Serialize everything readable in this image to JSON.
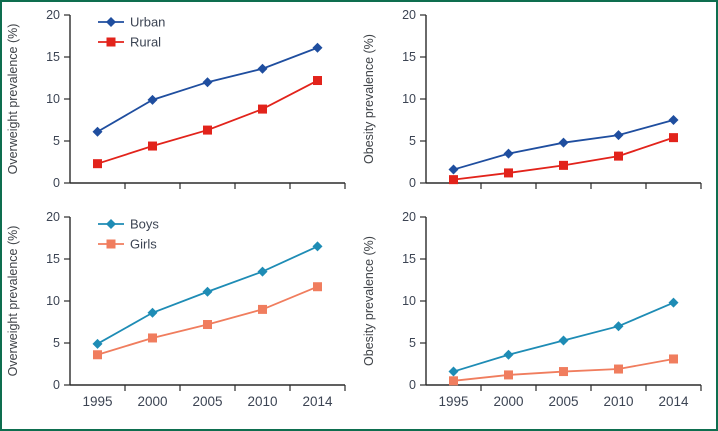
{
  "figure": {
    "border_color": "#0e6e4f",
    "background": "#ffffff"
  },
  "axis": {
    "line_color": "#2b2b2b",
    "tick_text_color": "#3c4453",
    "label_text_color": "#3f4348"
  },
  "chart_data": [
    {
      "id": "overweight-by-residence",
      "type": "line",
      "position": "top-left",
      "ylabel": "Overweight prevalence (%)",
      "ylim": [
        0,
        20
      ],
      "yticks": [
        0,
        5,
        10,
        15,
        20
      ],
      "categories": [
        "1995",
        "2000",
        "2005",
        "2010",
        "2014"
      ],
      "show_x_tick_labels": false,
      "legend": {
        "show": true,
        "position": "top-left",
        "entries": [
          "Urban",
          "Rural"
        ]
      },
      "series": [
        {
          "name": "Urban",
          "marker": "diamond",
          "color": "#1f4e9f",
          "values": [
            6.1,
            9.9,
            12.0,
            13.6,
            16.1
          ]
        },
        {
          "name": "Rural",
          "marker": "square",
          "color": "#e2231b",
          "values": [
            2.3,
            4.4,
            6.3,
            8.8,
            12.2
          ]
        }
      ]
    },
    {
      "id": "obesity-by-residence",
      "type": "line",
      "position": "top-right",
      "ylabel": "Obesity prevalence (%)",
      "ylim": [
        0,
        20
      ],
      "yticks": [
        0,
        5,
        10,
        15,
        20
      ],
      "categories": [
        "1995",
        "2000",
        "2005",
        "2010",
        "2014"
      ],
      "show_x_tick_labels": false,
      "legend": {
        "show": false,
        "entries": []
      },
      "series": [
        {
          "name": "Urban",
          "marker": "diamond",
          "color": "#1f4e9f",
          "values": [
            1.6,
            3.5,
            4.8,
            5.7,
            7.5
          ]
        },
        {
          "name": "Rural",
          "marker": "square",
          "color": "#e2231b",
          "values": [
            0.4,
            1.2,
            2.1,
            3.2,
            5.4
          ]
        }
      ]
    },
    {
      "id": "overweight-by-sex",
      "type": "line",
      "position": "bottom-left",
      "ylabel": "Overweight prevalence (%)",
      "ylim": [
        0,
        20
      ],
      "yticks": [
        0,
        5,
        10,
        15,
        20
      ],
      "categories": [
        "1995",
        "2000",
        "2005",
        "2010",
        "2014"
      ],
      "show_x_tick_labels": true,
      "legend": {
        "show": true,
        "position": "top-left",
        "entries": [
          "Boys",
          "Girls"
        ]
      },
      "series": [
        {
          "name": "Boys",
          "marker": "diamond",
          "color": "#1e8cb5",
          "values": [
            4.9,
            8.6,
            11.1,
            13.5,
            16.5
          ]
        },
        {
          "name": "Girls",
          "marker": "square",
          "color": "#f07d5e",
          "values": [
            3.6,
            5.6,
            7.2,
            9.0,
            11.7
          ]
        }
      ]
    },
    {
      "id": "obesity-by-sex",
      "type": "line",
      "position": "bottom-right",
      "ylabel": "Obesity prevalence (%)",
      "ylim": [
        0,
        20
      ],
      "yticks": [
        0,
        5,
        10,
        15,
        20
      ],
      "categories": [
        "1995",
        "2000",
        "2005",
        "2010",
        "2014"
      ],
      "show_x_tick_labels": true,
      "legend": {
        "show": false,
        "entries": []
      },
      "series": [
        {
          "name": "Boys",
          "marker": "diamond",
          "color": "#1e8cb5",
          "values": [
            1.6,
            3.6,
            5.3,
            7.0,
            9.8
          ]
        },
        {
          "name": "Girls",
          "marker": "square",
          "color": "#f07d5e",
          "values": [
            0.5,
            1.2,
            1.6,
            1.9,
            3.1
          ]
        }
      ]
    }
  ]
}
